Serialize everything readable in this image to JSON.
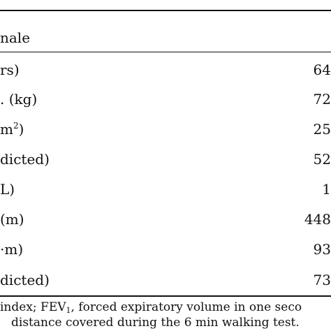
{
  "table": {
    "header_fragment": "nale",
    "rows": [
      {
        "label": "rs)",
        "value": "64"
      },
      {
        "label": ". (kg)",
        "value": "72"
      },
      {
        "label": "m",
        "label_sup": "2",
        "label_after": ")",
        "value": "25"
      },
      {
        "label": "dicted)",
        "value": "52"
      },
      {
        "label": "L)",
        "value": "1"
      },
      {
        "label": "(m)",
        "value": "448"
      },
      {
        "label": "·m)",
        "value": "93"
      },
      {
        "label": "dicted)",
        "value": "73"
      }
    ]
  },
  "footnote": {
    "line1_a": "index; FEV",
    "line1_sub": "1",
    "line1_b": ", forced expiratory volume in one seco",
    "line2": "distance covered during the 6 min walking test."
  }
}
